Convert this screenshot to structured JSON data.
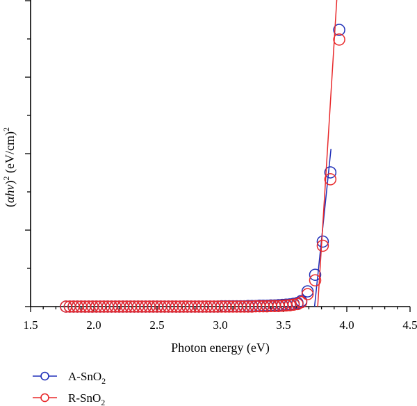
{
  "chart_data": {
    "type": "scatter",
    "xlabel": "Photon energy (eV)",
    "ylabel": {
      "prefix": "(",
      "alpha_h": "αh",
      "nu": "ν",
      "close": ")",
      "sup1": "2",
      "units": " (eV/cm)",
      "sup2": "2"
    },
    "xlim": [
      1.5,
      4.5
    ],
    "ylim": [
      0,
      1.0
    ],
    "x_ticks": [
      "1.5",
      "2.0",
      "2.5",
      "3.0",
      "3.5",
      "4.0",
      "4.5"
    ],
    "y_tick_labels_shown": false,
    "grid": false,
    "legend_position": "bottom-left",
    "series": [
      {
        "name": "A-SnO2",
        "name_base": "A-SnO",
        "name_sub": "2",
        "color": "#1f2fb8",
        "x": [
          1.78,
          1.81,
          1.84,
          1.87,
          1.9,
          1.93,
          1.96,
          1.99,
          2.02,
          2.05,
          2.08,
          2.11,
          2.14,
          2.17,
          2.2,
          2.23,
          2.26,
          2.29,
          2.32,
          2.35,
          2.38,
          2.41,
          2.44,
          2.47,
          2.5,
          2.53,
          2.56,
          2.59,
          2.62,
          2.65,
          2.68,
          2.71,
          2.74,
          2.77,
          2.8,
          2.83,
          2.86,
          2.89,
          2.92,
          2.95,
          2.98,
          3.01,
          3.04,
          3.07,
          3.1,
          3.13,
          3.16,
          3.19,
          3.22,
          3.25,
          3.28,
          3.31,
          3.34,
          3.37,
          3.4,
          3.43,
          3.46,
          3.49,
          3.52,
          3.55,
          3.58,
          3.61,
          3.64,
          3.69,
          3.75,
          3.81,
          3.87,
          3.94
        ],
        "y": [
          0,
          0,
          0,
          0,
          0,
          0,
          0,
          0,
          0,
          0,
          0,
          0,
          0,
          0,
          0,
          0,
          0,
          0,
          0,
          0,
          0,
          0,
          0,
          0,
          0,
          0,
          0,
          0,
          0,
          0,
          0,
          0,
          0,
          0,
          0,
          0,
          0,
          0,
          0,
          0,
          0,
          0.001,
          0.001,
          0.001,
          0.001,
          0.001,
          0.001,
          0.001,
          0.002,
          0.002,
          0.002,
          0.003,
          0.003,
          0.003,
          0.004,
          0.004,
          0.005,
          0.006,
          0.007,
          0.008,
          0.01,
          0.013,
          0.02,
          0.055,
          0.115,
          0.235,
          0.485,
          1.0
        ],
        "fit": {
          "x": [
            3.745,
            3.875
          ],
          "y": [
            0,
            0.57
          ]
        }
      },
      {
        "name": "R-SnO2",
        "name_base": "R-SnO",
        "name_sub": "2",
        "color": "#e8282a",
        "x": [
          1.78,
          1.81,
          1.84,
          1.87,
          1.9,
          1.93,
          1.96,
          1.99,
          2.02,
          2.05,
          2.08,
          2.11,
          2.14,
          2.17,
          2.2,
          2.23,
          2.26,
          2.29,
          2.32,
          2.35,
          2.38,
          2.41,
          2.44,
          2.47,
          2.5,
          2.53,
          2.56,
          2.59,
          2.62,
          2.65,
          2.68,
          2.71,
          2.74,
          2.77,
          2.8,
          2.83,
          2.86,
          2.89,
          2.92,
          2.95,
          2.98,
          3.01,
          3.04,
          3.07,
          3.1,
          3.13,
          3.16,
          3.19,
          3.22,
          3.25,
          3.28,
          3.31,
          3.34,
          3.37,
          3.4,
          3.43,
          3.46,
          3.49,
          3.52,
          3.55,
          3.58,
          3.61,
          3.64,
          3.69,
          3.75,
          3.81,
          3.87,
          3.94
        ],
        "y": [
          0,
          0,
          0,
          0,
          0,
          0,
          0,
          0,
          0,
          0,
          0,
          0,
          0,
          0,
          0,
          0,
          0,
          0,
          0,
          0,
          0,
          0,
          0,
          0,
          0,
          0,
          0,
          0,
          0,
          0,
          0,
          0,
          0,
          0,
          0,
          0,
          0,
          0,
          0,
          0,
          0,
          0,
          0,
          0,
          0,
          0,
          0,
          0,
          0,
          0,
          0.001,
          0.001,
          0.001,
          0.001,
          0.002,
          0.002,
          0.002,
          0.003,
          0.004,
          0.005,
          0.007,
          0.009,
          0.016,
          0.045,
          0.095,
          0.22,
          0.46,
          0.965
        ],
        "fit": {
          "x": [
            3.77,
            3.925
          ],
          "y": [
            0,
            1.14
          ]
        }
      }
    ]
  }
}
